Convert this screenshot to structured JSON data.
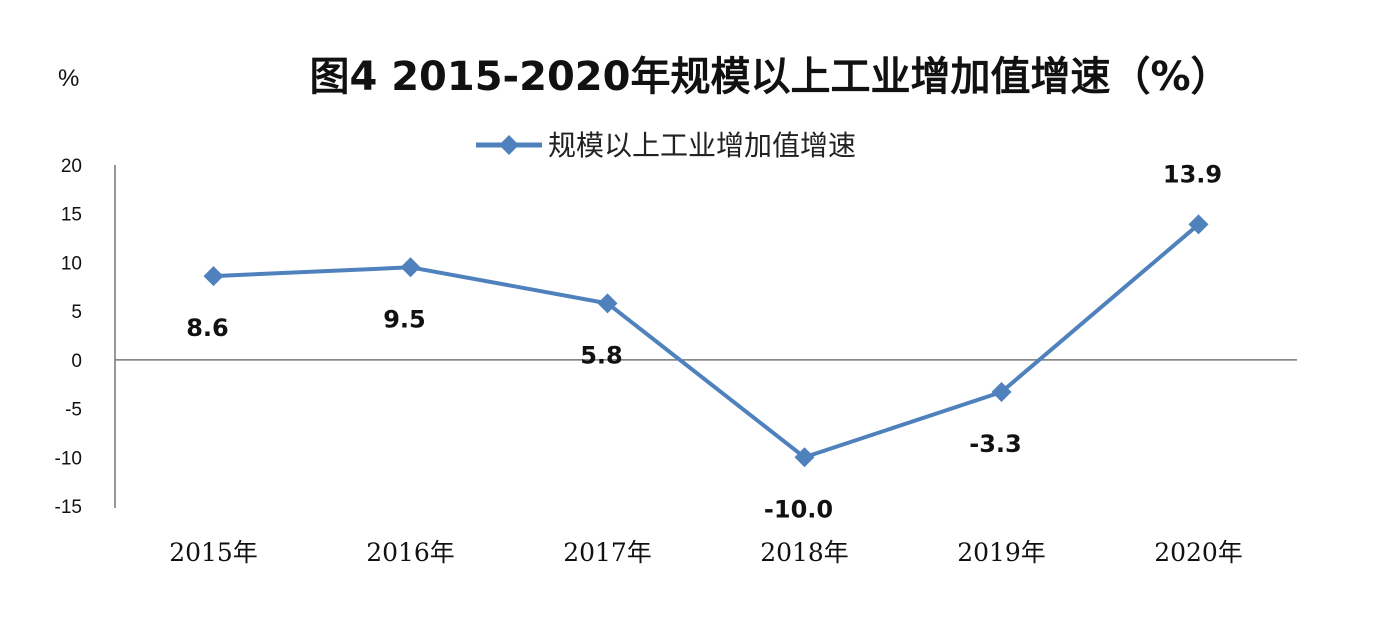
{
  "chart_data": {
    "type": "line",
    "title": "图4 2015-2020年规模以上工业增加值增速（%）",
    "ylabel": "%",
    "xlabel": "",
    "categories": [
      "2015年",
      "2016年",
      "2017年",
      "2018年",
      "2019年",
      "2020年"
    ],
    "series": [
      {
        "name": "规模以上工业增加值增速",
        "values": [
          8.6,
          9.5,
          5.8,
          -10.0,
          -3.3,
          13.9
        ],
        "color": "#4f81bd",
        "marker": "diamond"
      }
    ],
    "data_labels": [
      "8.6",
      "9.5",
      "5.8",
      "-10.0",
      "-3.3",
      "13.9"
    ],
    "data_label_side": [
      "below",
      "below",
      "below",
      "below",
      "below",
      "above"
    ],
    "ylim": [
      -15,
      20
    ],
    "yticks": [
      20,
      15,
      10,
      5,
      0,
      -5,
      -10,
      -15
    ],
    "ytick_labels": [
      "20",
      "15",
      "10",
      "5",
      "0",
      "-5",
      "-10",
      "-15"
    ],
    "grid": false,
    "legend_position": "top"
  }
}
